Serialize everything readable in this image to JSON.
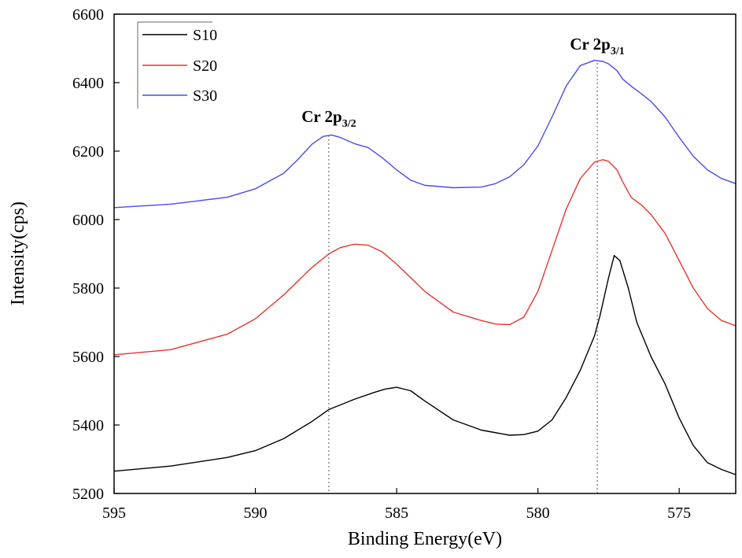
{
  "chart_data": {
    "type": "line",
    "xlabel": "Binding Energy(eV)",
    "ylabel": "Intensity(cps)",
    "xlim": [
      595,
      573
    ],
    "ylim": [
      5200,
      6600
    ],
    "xticks": [
      {
        "value": 595,
        "label": "595"
      },
      {
        "value": 590,
        "label": "590"
      },
      {
        "value": 585,
        "label": "585"
      },
      {
        "value": 580,
        "label": "580"
      },
      {
        "value": 575,
        "label": "575"
      }
    ],
    "yticks": [
      {
        "value": 5200,
        "label": "5200"
      },
      {
        "value": 5400,
        "label": "5400"
      },
      {
        "value": 5600,
        "label": "5600"
      },
      {
        "value": 5800,
        "label": "5800"
      },
      {
        "value": 6000,
        "label": "6000"
      },
      {
        "value": 6200,
        "label": "6200"
      },
      {
        "value": 6400,
        "label": "6400"
      },
      {
        "value": 6600,
        "label": "6600"
      }
    ],
    "legend_position": "top-left",
    "series": [
      {
        "name": "S10",
        "color": "#000000",
        "x": [
          595,
          593,
          591,
          590,
          589,
          588,
          587.4,
          586.5,
          585.8,
          585.4,
          585,
          584.5,
          584,
          583,
          582,
          581,
          580.5,
          580,
          579.5,
          579,
          578.5,
          578,
          577.8,
          577.5,
          577.3,
          577.1,
          576.8,
          576.5,
          576,
          575.5,
          575,
          574.5,
          574,
          573.5,
          573
        ],
        "y": [
          5265,
          5280,
          5305,
          5325,
          5360,
          5410,
          5445,
          5475,
          5495,
          5505,
          5510,
          5500,
          5470,
          5415,
          5385,
          5370,
          5372,
          5382,
          5415,
          5480,
          5560,
          5660,
          5720,
          5830,
          5895,
          5880,
          5800,
          5700,
          5600,
          5520,
          5420,
          5340,
          5290,
          5270,
          5255
        ]
      },
      {
        "name": "S20",
        "color": "#e8352f",
        "x": [
          595,
          593,
          591,
          590,
          589,
          588,
          587.4,
          587,
          586.5,
          586,
          585.5,
          585,
          584,
          583,
          582,
          581.5,
          581,
          580.5,
          580,
          579.5,
          579,
          578.5,
          578,
          577.7,
          577.5,
          577.2,
          577,
          576.7,
          576.3,
          576,
          575.5,
          575,
          574.5,
          574,
          573.5,
          573
        ],
        "y": [
          5605,
          5620,
          5665,
          5710,
          5780,
          5860,
          5900,
          5918,
          5928,
          5925,
          5905,
          5870,
          5790,
          5730,
          5705,
          5695,
          5693,
          5715,
          5790,
          5910,
          6030,
          6120,
          6168,
          6175,
          6170,
          6145,
          6110,
          6065,
          6040,
          6015,
          5960,
          5880,
          5800,
          5740,
          5705,
          5690
        ]
      },
      {
        "name": "S30",
        "color": "#4a4aef",
        "x": [
          595,
          593,
          591,
          590,
          589,
          588.5,
          588,
          587.6,
          587.3,
          587,
          586.5,
          586,
          585.5,
          585,
          584.5,
          584,
          583,
          582,
          581.5,
          581,
          580.5,
          580,
          579.5,
          579,
          578.5,
          578,
          577.7,
          577.5,
          577.2,
          577,
          576.7,
          576.3,
          576,
          575.5,
          575,
          574.5,
          574,
          573.5,
          573
        ],
        "y": [
          6035,
          6045,
          6065,
          6090,
          6135,
          6175,
          6220,
          6243,
          6247,
          6240,
          6222,
          6210,
          6180,
          6145,
          6115,
          6100,
          6093,
          6095,
          6105,
          6125,
          6160,
          6215,
          6300,
          6390,
          6450,
          6465,
          6462,
          6455,
          6435,
          6410,
          6390,
          6365,
          6345,
          6300,
          6240,
          6185,
          6145,
          6120,
          6105
        ]
      }
    ],
    "annotations": [
      {
        "label": "Cr 2p",
        "sub": "3/2",
        "x": 587.4
      },
      {
        "label": "Cr 2p",
        "sub": "3/1",
        "x": 577.9
      }
    ]
  }
}
